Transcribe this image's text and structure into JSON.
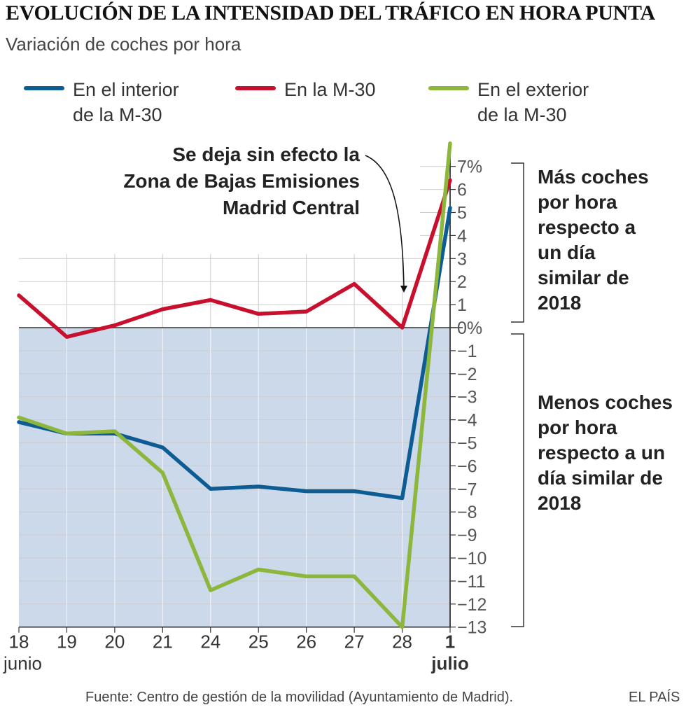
{
  "title": "EVOLUCIÓN DE LA INTENSIDAD DEL TRÁFICO EN HORA PUNTA",
  "subtitle": "Variación de coches por hora",
  "legend": [
    {
      "line1": "En el interior",
      "line2": "de la M-30",
      "color": "#0e5c94"
    },
    {
      "line1": "En la M-30",
      "line2": "",
      "color": "#c8102e"
    },
    {
      "line1": "En el exterior",
      "line2": "de la M-30",
      "color": "#8cb63c"
    }
  ],
  "annotation": [
    "Se deja sin efecto la",
    "Zona de Bajas Emisiones",
    "Madrid Central"
  ],
  "side_labels": {
    "positive": [
      "Más coches",
      "por hora",
      "respecto a",
      "un día",
      "similar de",
      "2018"
    ],
    "negative": [
      "Menos coches",
      "por hora",
      "respecto a un",
      "día similar de",
      "2018"
    ]
  },
  "source": "Fuente: Centro de gestión de la movilidad (Ayuntamiento de Madrid).",
  "brand": "EL PAÍS",
  "colors": {
    "negative_area": "#ccd9ea",
    "grid": "#cccccc",
    "axis": "#333333",
    "tick_label": "#555555"
  },
  "chart_data": {
    "type": "line",
    "categories": [
      "18",
      "19",
      "20",
      "21",
      "24",
      "25",
      "26",
      "27",
      "28",
      "1"
    ],
    "category_sublabels": [
      "junio",
      "",
      "",
      "",
      "",
      "",
      "",
      "",
      "",
      "julio"
    ],
    "y_tick_labels": [
      "7%",
      "6",
      "5",
      "4",
      "3",
      "2",
      "1",
      "0%",
      "−1",
      "−2",
      "−3",
      "−4",
      "−5",
      "−6",
      "−7",
      "−8",
      "−9",
      "−10",
      "−11",
      "−12",
      "−13"
    ],
    "ylim": [
      -13,
      8
    ],
    "series": [
      {
        "name": "En el interior de la M-30",
        "color": "#0e5c94",
        "values": [
          -4.1,
          -4.6,
          -4.6,
          -5.2,
          -7.0,
          -6.9,
          -7.1,
          -7.1,
          -7.4,
          5.2
        ]
      },
      {
        "name": "En la M-30",
        "color": "#c8102e",
        "values": [
          1.4,
          -0.4,
          0.1,
          0.8,
          1.2,
          0.6,
          0.7,
          1.9,
          0.0,
          6.4
        ]
      },
      {
        "name": "En el exterior de la M-30",
        "color": "#8cb63c",
        "values": [
          -3.9,
          -4.6,
          -4.5,
          -6.3,
          -11.4,
          -10.5,
          -10.8,
          -10.8,
          -13.0,
          8.0
        ]
      }
    ]
  }
}
